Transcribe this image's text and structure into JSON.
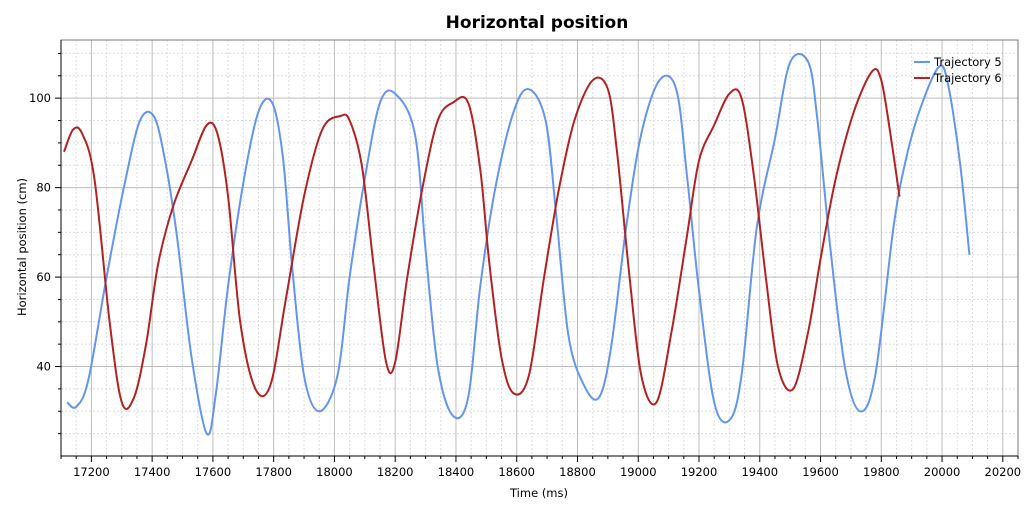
{
  "chart_data": {
    "type": "line",
    "title": "Horizontal position",
    "xlabel": "Time (ms)",
    "ylabel": "Horizontal position (cm)",
    "xlim": [
      17100,
      20250
    ],
    "ylim": [
      20,
      113
    ],
    "x_ticks": [
      17200,
      17400,
      17600,
      17800,
      18000,
      18200,
      18400,
      18600,
      18800,
      19000,
      19200,
      19400,
      19600,
      19800,
      20000,
      20200
    ],
    "y_ticks": [
      40,
      60,
      80,
      100
    ],
    "grid": true,
    "legend_position": "top-right",
    "series": [
      {
        "name": "Trajectory 5",
        "color": "#6495ed",
        "x": [
          17120,
          17150,
          17190,
          17250,
          17310,
          17360,
          17405,
          17440,
          17480,
          17530,
          17580,
          17610,
          17650,
          17700,
          17750,
          17795,
          17830,
          17860,
          17900,
          17950,
          18010,
          18050,
          18100,
          18150,
          18200,
          18265,
          18300,
          18340,
          18390,
          18440,
          18480,
          18530,
          18590,
          18640,
          18695,
          18730,
          18770,
          18820,
          18870,
          18910,
          18960,
          19010,
          19070,
          19125,
          19160,
          19200,
          19250,
          19300,
          19340,
          19390,
          19450,
          19500,
          19560,
          19590,
          19630,
          19680,
          19730,
          19780,
          19840,
          19880,
          19930,
          19990,
          20020,
          20060,
          20090
        ],
        "y": [
          32,
          31,
          37,
          60,
          81,
          95,
          96,
          87,
          70,
          42,
          25,
          34,
          58,
          81,
          97,
          99,
          87,
          63,
          38,
          30,
          38,
          60,
          82,
          99,
          101,
          92,
          66,
          40,
          29,
          33,
          58,
          80,
          97,
          102,
          95,
          74,
          47,
          36,
          33,
          44,
          71,
          92,
          104,
          102,
          83,
          57,
          32,
          28,
          38,
          71,
          91,
          108,
          108,
          95,
          68,
          40,
          30,
          38,
          71,
          86,
          98,
          107,
          103,
          85,
          65
        ]
      },
      {
        "name": "Trajectory 6",
        "color": "#b22222",
        "x": [
          17110,
          17140,
          17170,
          17210,
          17260,
          17300,
          17340,
          17380,
          17420,
          17470,
          17530,
          17580,
          17615,
          17650,
          17690,
          17740,
          17790,
          17840,
          17900,
          17960,
          18020,
          18050,
          18090,
          18130,
          18170,
          18200,
          18240,
          18290,
          18340,
          18390,
          18440,
          18480,
          18510,
          18550,
          18590,
          18640,
          18690,
          18740,
          18790,
          18850,
          18900,
          18930,
          18970,
          19010,
          19060,
          19110,
          19160,
          19200,
          19250,
          19300,
          19340,
          19380,
          19420,
          19460,
          19510,
          19560,
          19600,
          19650,
          19710,
          19770,
          19800,
          19830,
          19860
        ],
        "y": [
          88,
          93,
          92,
          82,
          50,
          32,
          33,
          45,
          63,
          76,
          86,
          94,
          92,
          78,
          50,
          35,
          36,
          55,
          78,
          93,
          96,
          95,
          85,
          62,
          41,
          41,
          60,
          80,
          95,
          99,
          99,
          84,
          63,
          42,
          34,
          38,
          60,
          80,
          95,
          104,
          102,
          88,
          61,
          38,
          32,
          48,
          69,
          86,
          94,
          101,
          100,
          83,
          60,
          40,
          35,
          48,
          64,
          82,
          97,
          106,
          104,
          92,
          78
        ]
      }
    ]
  }
}
